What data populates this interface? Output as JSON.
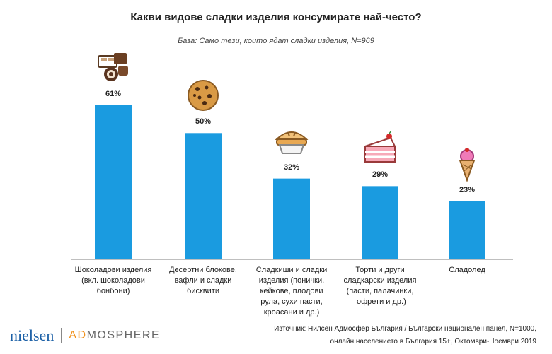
{
  "header": {
    "title": "Какви видове сладки изделия консумирате най-често?",
    "subtitle": "База: Само тези, които ядат сладки изделия, N=969"
  },
  "chart_data": {
    "type": "bar",
    "categories": [
      "Шоколадови изделия\n(вкл. шоколадови\nбонбони)",
      "Десертни блокове,\nвафли и сладки\nбисквити",
      "Сладкиши и сладки\nизделия (понички,\nкейкове, плодови\nрула, сухи пасти,\nкроасани и др.)",
      "Торти и други\nсладкарски изделия\n(пасти, палачинки,\nгофрети и др.)",
      "Сладолед"
    ],
    "values": [
      61,
      50,
      32,
      29,
      23
    ],
    "value_labels": [
      "61%",
      "50%",
      "32%",
      "29%",
      "23%"
    ],
    "ylim": [
      0,
      100
    ],
    "bar_color": "#1a9be0",
    "icons": [
      "chocolate-icon",
      "cookie-icon",
      "pie-icon",
      "cake-slice-icon",
      "ice-cream-icon"
    ]
  },
  "footer": {
    "brand_left": "nielsen",
    "brand_left_sub": "",
    "brand_right_prefix": "AD",
    "brand_right_suffix": "MOSPHERE",
    "source_line1": "Източник: Нилсен Адмосфер България / Български национален панел, N=1000,",
    "source_line2": "онлайн населението в България 15+, Октомври-Ноември 2019"
  }
}
